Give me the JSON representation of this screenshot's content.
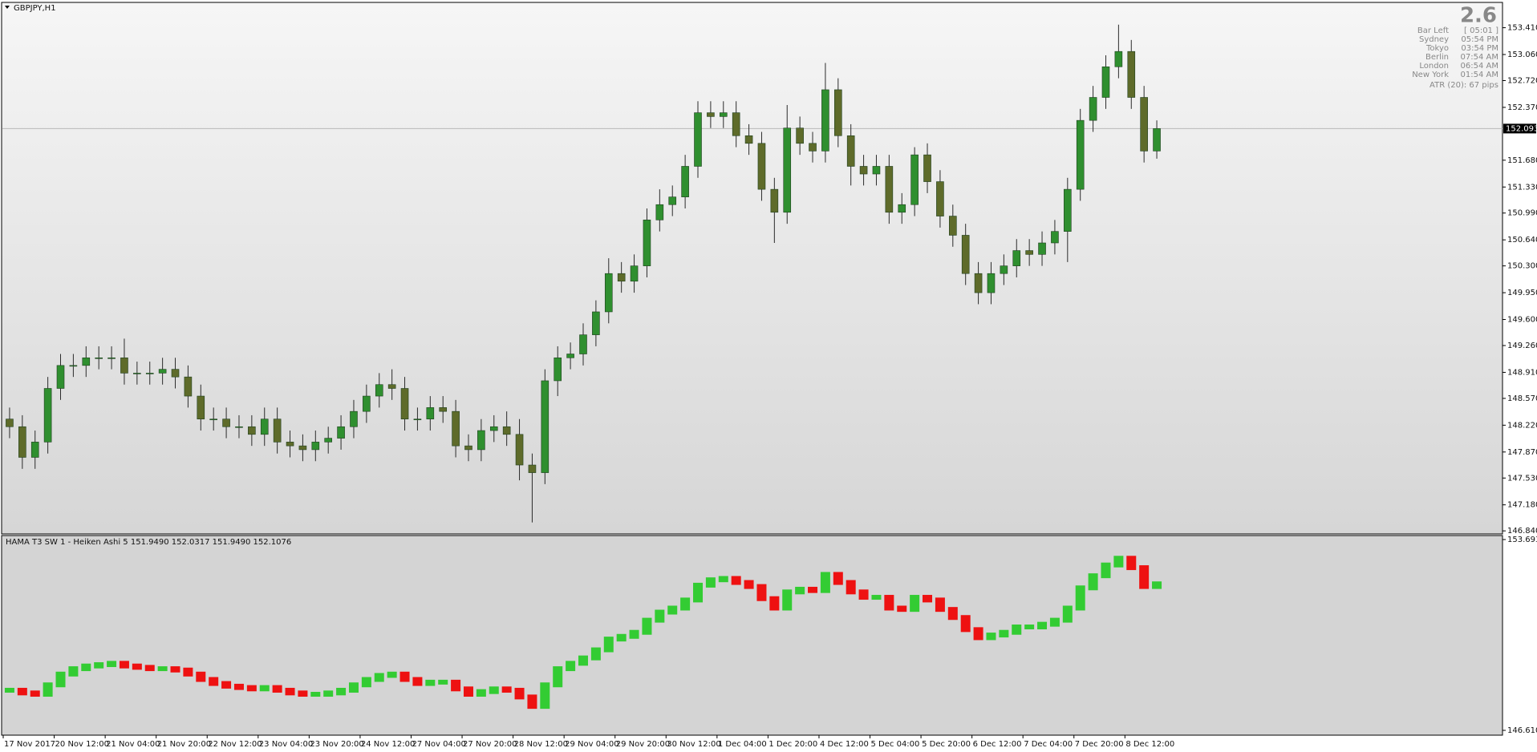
{
  "chart_data": [
    {
      "type": "candlestick",
      "title": "GBPJPY,H1",
      "categories": [
        "17 Nov 2017",
        null,
        null,
        null,
        "20 Nov 12:00",
        null,
        null,
        null,
        "21 Nov 04:00",
        null,
        null,
        null,
        "21 Nov 20:00",
        null,
        null,
        null,
        "22 Nov 12:00",
        null,
        null,
        null,
        "23 Nov 04:00",
        null,
        null,
        null,
        "23 Nov 20:00",
        null,
        null,
        null,
        "24 Nov 12:00",
        null,
        null,
        null,
        "27 Nov 04:00",
        null,
        null,
        null,
        "27 Nov 20:00",
        null,
        null,
        null,
        "28 Nov 12:00",
        null,
        null,
        null,
        "29 Nov 04:00",
        null,
        null,
        null,
        "29 Nov 20:00",
        null,
        null,
        null,
        "30 Nov 12:00",
        null,
        null,
        null,
        "1 Dec 04:00",
        null,
        null,
        null,
        "1 Dec 20:00",
        null,
        null,
        null,
        "4 Dec 12:00",
        null,
        null,
        null,
        "5 Dec 04:00",
        null,
        null,
        null,
        "5 Dec 20:00",
        null,
        null,
        null,
        "6 Dec 12:00",
        null,
        null,
        null,
        "7 Dec 04:00",
        null,
        null,
        null,
        "7 Dec 20:00",
        null,
        null,
        null,
        "8 Dec 12:00",
        null,
        null
      ],
      "open": [
        148.3,
        148.2,
        147.8,
        148.0,
        148.7,
        149.0,
        149.0,
        149.1,
        149.1,
        149.1,
        148.9,
        148.9,
        148.9,
        148.95,
        148.85,
        148.6,
        148.3,
        148.3,
        148.2,
        148.2,
        148.1,
        148.3,
        148.0,
        147.95,
        147.9,
        148.0,
        148.05,
        148.2,
        148.4,
        148.6,
        148.75,
        148.7,
        148.3,
        148.3,
        148.45,
        148.4,
        147.95,
        147.9,
        148.15,
        148.2,
        148.1,
        147.7,
        147.6,
        148.8,
        149.1,
        149.15,
        149.4,
        149.7,
        150.2,
        150.1,
        150.3,
        150.9,
        151.1,
        151.2,
        151.6,
        152.3,
        152.25,
        152.3,
        152.0,
        151.9,
        151.3,
        151.0,
        152.1,
        151.9,
        151.8,
        152.6,
        152.0,
        151.6,
        151.5,
        151.6,
        151.0,
        151.1,
        151.75,
        151.4,
        150.95,
        150.7,
        150.2,
        149.95,
        150.2,
        150.3,
        150.5,
        150.45,
        150.6,
        150.75,
        151.3,
        152.2,
        152.5,
        152.9,
        153.1,
        152.5,
        151.8
      ],
      "high": [
        148.45,
        148.35,
        148.15,
        148.85,
        149.15,
        149.15,
        149.25,
        149.25,
        149.25,
        149.35,
        149.05,
        149.05,
        149.1,
        149.1,
        149.0,
        148.75,
        148.45,
        148.45,
        148.35,
        148.35,
        148.45,
        148.45,
        148.15,
        148.1,
        148.15,
        148.2,
        148.35,
        148.55,
        148.75,
        148.9,
        148.95,
        148.85,
        148.45,
        148.6,
        148.6,
        148.55,
        148.1,
        148.3,
        148.35,
        148.4,
        148.3,
        147.85,
        148.95,
        149.25,
        149.3,
        149.55,
        149.85,
        150.4,
        150.35,
        150.45,
        151.05,
        151.3,
        151.35,
        151.75,
        152.45,
        152.45,
        152.45,
        152.45,
        152.15,
        152.05,
        151.45,
        152.4,
        152.25,
        152.05,
        152.95,
        152.75,
        152.15,
        151.75,
        151.75,
        151.75,
        151.25,
        151.85,
        151.9,
        151.55,
        151.1,
        150.85,
        150.35,
        150.35,
        150.45,
        150.65,
        150.65,
        150.75,
        150.9,
        151.45,
        152.35,
        152.65,
        153.05,
        153.45,
        153.25,
        152.65,
        152.2
      ],
      "low": [
        148.05,
        147.65,
        147.65,
        147.85,
        148.55,
        148.85,
        148.85,
        148.95,
        148.95,
        148.75,
        148.75,
        148.75,
        148.75,
        148.7,
        148.45,
        148.15,
        148.15,
        148.05,
        148.05,
        147.95,
        147.95,
        147.85,
        147.8,
        147.75,
        147.75,
        147.85,
        147.9,
        148.05,
        148.25,
        148.45,
        148.55,
        148.15,
        148.15,
        148.15,
        148.25,
        147.8,
        147.75,
        147.75,
        148.0,
        147.95,
        147.5,
        146.95,
        147.45,
        148.6,
        148.95,
        149.0,
        149.25,
        149.55,
        149.95,
        149.95,
        150.15,
        150.75,
        150.95,
        151.05,
        151.45,
        152.1,
        152.1,
        151.85,
        151.75,
        151.15,
        150.6,
        150.85,
        151.75,
        151.65,
        151.65,
        151.85,
        151.35,
        151.35,
        151.35,
        150.85,
        150.85,
        150.95,
        151.25,
        150.8,
        150.55,
        150.05,
        149.8,
        149.8,
        150.05,
        150.15,
        150.3,
        150.3,
        150.45,
        150.35,
        151.15,
        152.05,
        152.35,
        152.75,
        152.35,
        151.65,
        151.7
      ],
      "close": [
        148.2,
        147.8,
        148.0,
        148.7,
        149.0,
        149.0,
        149.1,
        149.1,
        149.1,
        148.9,
        148.9,
        148.9,
        148.95,
        148.85,
        148.6,
        148.3,
        148.3,
        148.2,
        148.2,
        148.1,
        148.3,
        148.0,
        147.95,
        147.9,
        148.0,
        148.05,
        148.2,
        148.4,
        148.6,
        148.75,
        148.7,
        148.3,
        148.3,
        148.45,
        148.4,
        147.95,
        147.9,
        148.15,
        148.2,
        148.1,
        147.7,
        147.6,
        148.8,
        149.1,
        149.15,
        149.4,
        149.7,
        150.2,
        150.1,
        150.3,
        150.9,
        151.1,
        151.2,
        151.6,
        152.3,
        152.25,
        152.3,
        152.0,
        151.9,
        151.3,
        151.0,
        152.1,
        151.9,
        151.8,
        152.6,
        152.0,
        151.6,
        151.5,
        151.6,
        151.0,
        151.1,
        151.75,
        151.4,
        150.95,
        150.7,
        150.2,
        149.95,
        150.2,
        150.3,
        150.5,
        150.45,
        150.6,
        150.75,
        151.3,
        152.2,
        152.5,
        152.9,
        153.1,
        152.5,
        151.8,
        152.093
      ],
      "up_color": "#2f8f2f",
      "down_color": "#5e6b2a",
      "wick_color": "#2b2b2b",
      "ylim": [
        146.8,
        153.73
      ],
      "yticks": [
        {
          "value": 153.41,
          "label": "153.410"
        },
        {
          "value": 153.06,
          "label": "153.060"
        },
        {
          "value": 152.72,
          "label": "152.720"
        },
        {
          "value": 152.37,
          "label": "152.370"
        },
        {
          "value": 151.68,
          "label": "151.680"
        },
        {
          "value": 151.33,
          "label": "151.330"
        },
        {
          "value": 150.99,
          "label": "150.990"
        },
        {
          "value": 150.64,
          "label": "150.640"
        },
        {
          "value": 150.3,
          "label": "150.300"
        },
        {
          "value": 149.95,
          "label": "149.950"
        },
        {
          "value": 149.6,
          "label": "149.600"
        },
        {
          "value": 149.26,
          "label": "149.260"
        },
        {
          "value": 148.91,
          "label": "148.910"
        },
        {
          "value": 148.57,
          "label": "148.570"
        },
        {
          "value": 148.22,
          "label": "148.220"
        },
        {
          "value": 147.87,
          "label": "147.870"
        },
        {
          "value": 147.53,
          "label": "147.530"
        },
        {
          "value": 147.18,
          "label": "147.180"
        },
        {
          "value": 146.84,
          "label": "146.840"
        }
      ],
      "current_price": 152.093,
      "spread": "2.6",
      "info": [
        [
          "Bar Left",
          "[ 05:01 ]"
        ],
        [
          "Sydney",
          "05:54 PM"
        ],
        [
          "Tokyo",
          "03:54 PM"
        ],
        [
          "Berlin",
          "07:54 AM"
        ],
        [
          "London",
          "06:54 AM"
        ],
        [
          "New York",
          "01:54 AM"
        ]
      ],
      "atr": "ATR (20): 67 pips"
    },
    {
      "type": "heikinashi",
      "title": "HAMA T3 SW 1 -  Heiken Ashi 5 151.9490 152.0317 151.9490 152.1076",
      "values": [
        148.1,
        148.0,
        147.95,
        148.3,
        148.7,
        148.9,
        149.0,
        149.05,
        149.1,
        149.0,
        148.95,
        148.9,
        148.9,
        148.85,
        148.7,
        148.5,
        148.35,
        148.25,
        148.2,
        148.15,
        148.2,
        148.1,
        148.0,
        147.95,
        147.95,
        148.0,
        148.1,
        148.3,
        148.5,
        148.65,
        148.7,
        148.5,
        148.35,
        148.4,
        148.4,
        148.15,
        147.95,
        148.05,
        148.15,
        148.1,
        147.85,
        147.5,
        148.3,
        148.9,
        149.1,
        149.3,
        149.6,
        150.0,
        150.1,
        150.25,
        150.7,
        151.0,
        151.15,
        151.45,
        152.0,
        152.2,
        152.25,
        152.1,
        151.95,
        151.5,
        151.15,
        151.75,
        151.85,
        151.8,
        152.4,
        152.1,
        151.75,
        151.55,
        151.55,
        151.15,
        151.1,
        151.55,
        151.45,
        151.1,
        150.8,
        150.35,
        150.05,
        150.15,
        150.25,
        150.45,
        150.45,
        150.55,
        150.7,
        151.15,
        151.9,
        152.35,
        152.75,
        153.0,
        152.65,
        151.95,
        152.05
      ],
      "up_color": "#33cc33",
      "down_color": "#ee1111",
      "ylim": [
        146.6109,
        153.6938
      ],
      "yticks": [
        153.6938,
        146.6109
      ]
    }
  ]
}
